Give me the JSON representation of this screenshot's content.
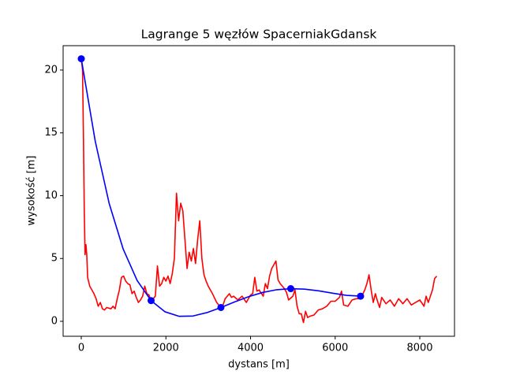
{
  "chart_data": {
    "type": "line",
    "title": "Lagrange 5 węzłów SpacerniakGdansk",
    "x_label": "dystans [m]",
    "y_label": "wysokość [m]",
    "xlim": [
      -429,
      8820
    ],
    "ylim": [
      -1.19,
      21.94
    ],
    "xticks": [
      0,
      2000,
      4000,
      6000,
      8000
    ],
    "yticks": [
      0,
      5,
      10,
      15,
      20
    ],
    "grid": false,
    "series": [
      {
        "color": "#ff0000",
        "markers": false,
        "x": [
          0,
          30,
          50,
          70,
          90,
          110,
          130,
          150,
          200,
          300,
          350,
          400,
          450,
          500,
          550,
          600,
          700,
          750,
          800,
          850,
          900,
          950,
          1000,
          1050,
          1100,
          1150,
          1200,
          1250,
          1300,
          1350,
          1400,
          1450,
          1500,
          1550,
          1600,
          1650,
          1700,
          1750,
          1800,
          1850,
          1900,
          1950,
          2000,
          2050,
          2100,
          2150,
          2200,
          2250,
          2300,
          2350,
          2400,
          2450,
          2500,
          2550,
          2600,
          2650,
          2700,
          2750,
          2800,
          2850,
          2900,
          2950,
          3000,
          3100,
          3200,
          3300,
          3350,
          3400,
          3450,
          3500,
          3550,
          3600,
          3700,
          3800,
          3900,
          4000,
          4050,
          4100,
          4150,
          4200,
          4300,
          4350,
          4400,
          4450,
          4500,
          4550,
          4600,
          4650,
          4700,
          4800,
          4850,
          4900,
          5000,
          5050,
          5100,
          5150,
          5200,
          5250,
          5300,
          5350,
          5400,
          5500,
          5600,
          5700,
          5800,
          5900,
          6000,
          6100,
          6150,
          6200,
          6300,
          6400,
          6500,
          6600,
          6700,
          6750,
          6800,
          6850,
          6900,
          6950,
          7000,
          7050,
          7100,
          7200,
          7300,
          7400,
          7500,
          7600,
          7700,
          7800,
          7900,
          8000,
          8100,
          8150,
          8200,
          8300,
          8350,
          8400
        ],
        "values": [
          20.9,
          20,
          15,
          9,
          5.3,
          6.1,
          5.3,
          3.5,
          2.8,
          2.2,
          1.8,
          1.2,
          1.5,
          1.0,
          0.9,
          1.1,
          1.0,
          1.2,
          1.0,
          1.8,
          2.5,
          3.5,
          3.6,
          3.2,
          3.0,
          2.9,
          2.2,
          2.4,
          1.9,
          1.5,
          1.7,
          2.0,
          2.8,
          2.2,
          2.1,
          1.6,
          1.8,
          2.0,
          4.4,
          2.8,
          3.0,
          3.5,
          3.2,
          3.6,
          3.0,
          3.8,
          5.0,
          10.2,
          8.0,
          9.4,
          8.8,
          6.5,
          4.2,
          5.5,
          4.8,
          5.8,
          4.6,
          6.5,
          8.0,
          5.0,
          3.7,
          3.2,
          2.8,
          2.2,
          1.5,
          1.1,
          1.3,
          1.8,
          2.0,
          2.2,
          1.9,
          2.0,
          1.7,
          2.0,
          1.5,
          2.1,
          2.2,
          3.5,
          2.4,
          2.5,
          2.0,
          3.0,
          2.6,
          3.6,
          4.2,
          4.5,
          4.8,
          3.3,
          3.0,
          2.6,
          2.3,
          1.7,
          2.0,
          2.5,
          1.2,
          0.6,
          0.6,
          -0.1,
          0.8,
          0.3,
          0.4,
          0.5,
          0.9,
          1.0,
          1.2,
          1.6,
          1.6,
          1.9,
          2.4,
          1.3,
          1.2,
          1.7,
          1.8,
          1.8,
          2.5,
          3.0,
          3.7,
          2.5,
          1.5,
          2.2,
          1.6,
          1.1,
          1.9,
          1.4,
          1.7,
          1.2,
          1.8,
          1.4,
          1.8,
          1.3,
          1.5,
          1.7,
          1.2,
          2.0,
          1.5,
          2.5,
          3.4,
          3.6
        ]
      },
      {
        "color": "#0000ff",
        "markers": false,
        "x": [
          0,
          330,
          660,
          990,
          1320,
          1650,
          1980,
          2310,
          2640,
          2970,
          3300,
          3630,
          3960,
          4290,
          4620,
          4950,
          5280,
          5610,
          5940,
          6270,
          6600
        ],
        "values": [
          20.9,
          14.335,
          9.37,
          5.754,
          3.251,
          1.65,
          0.757,
          0.398,
          0.422,
          0.693,
          1.1,
          1.549,
          1.966,
          2.3,
          2.515,
          2.6,
          2.561,
          2.424,
          2.238,
          2.067,
          2.0
        ]
      },
      {
        "color": "#0000ff",
        "markers": true,
        "x": [
          0,
          1650,
          3300,
          4950,
          6600
        ],
        "values": [
          20.9,
          1.65,
          1.1,
          2.6,
          2.0
        ]
      }
    ]
  }
}
